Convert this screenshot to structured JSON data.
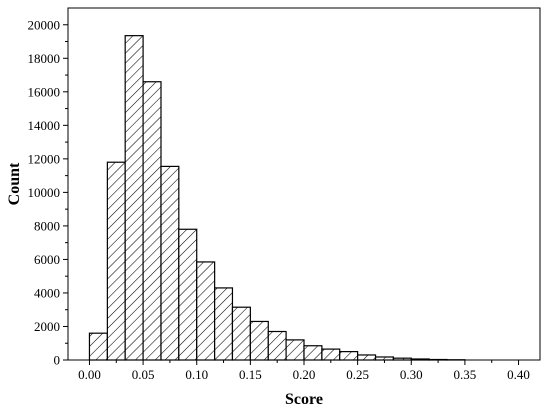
{
  "chart_data": {
    "type": "bar",
    "subtype": "histogram",
    "xlabel": "Score",
    "ylabel": "Count",
    "xlim": [
      -0.02,
      0.42
    ],
    "ylim": [
      0,
      21000
    ],
    "x_ticks": [
      "0.00",
      "0.05",
      "0.10",
      "0.15",
      "0.20",
      "0.25",
      "0.30",
      "0.35",
      "0.40"
    ],
    "x_tick_values": [
      0.0,
      0.05,
      0.1,
      0.15,
      0.2,
      0.25,
      0.3,
      0.35,
      0.4
    ],
    "y_ticks": [
      "0",
      "2000",
      "4000",
      "6000",
      "8000",
      "10000",
      "12000",
      "14000",
      "16000",
      "18000",
      "20000"
    ],
    "y_tick_values": [
      0,
      2000,
      4000,
      6000,
      8000,
      10000,
      12000,
      14000,
      16000,
      18000,
      20000
    ],
    "bin_width": 0.0167,
    "bins": [
      {
        "x0": 0.0,
        "x1": 0.0167,
        "count": 1600
      },
      {
        "x0": 0.0167,
        "x1": 0.0333,
        "count": 11800
      },
      {
        "x0": 0.0333,
        "x1": 0.05,
        "count": 19350
      },
      {
        "x0": 0.05,
        "x1": 0.0667,
        "count": 16600
      },
      {
        "x0": 0.0667,
        "x1": 0.0833,
        "count": 11550
      },
      {
        "x0": 0.0833,
        "x1": 0.1,
        "count": 7800
      },
      {
        "x0": 0.1,
        "x1": 0.1167,
        "count": 5850
      },
      {
        "x0": 0.1167,
        "x1": 0.1333,
        "count": 4300
      },
      {
        "x0": 0.1333,
        "x1": 0.15,
        "count": 3150
      },
      {
        "x0": 0.15,
        "x1": 0.1667,
        "count": 2300
      },
      {
        "x0": 0.1667,
        "x1": 0.1833,
        "count": 1700
      },
      {
        "x0": 0.1833,
        "x1": 0.2,
        "count": 1200
      },
      {
        "x0": 0.2,
        "x1": 0.2167,
        "count": 850
      },
      {
        "x0": 0.2167,
        "x1": 0.2333,
        "count": 650
      },
      {
        "x0": 0.2333,
        "x1": 0.25,
        "count": 500
      },
      {
        "x0": 0.25,
        "x1": 0.2667,
        "count": 300
      },
      {
        "x0": 0.2667,
        "x1": 0.2833,
        "count": 180
      },
      {
        "x0": 0.2833,
        "x1": 0.3,
        "count": 110
      },
      {
        "x0": 0.3,
        "x1": 0.3167,
        "count": 60
      },
      {
        "x0": 0.3167,
        "x1": 0.3333,
        "count": 30
      },
      {
        "x0": 0.3333,
        "x1": 0.35,
        "count": 15
      }
    ],
    "bar_fill": "hatched diagonal",
    "bar_stroke": "#000000",
    "grid": false,
    "legend": "none"
  }
}
